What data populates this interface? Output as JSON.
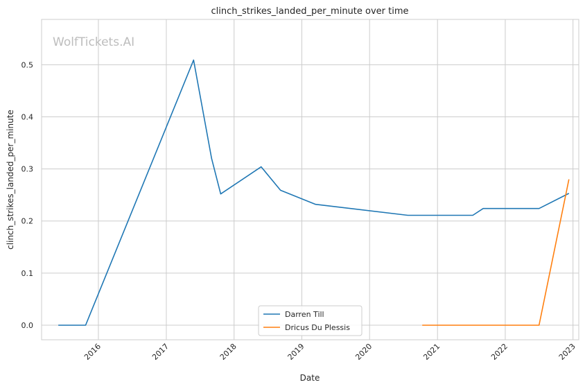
{
  "watermark": "WolfTickets.AI",
  "chart_data": {
    "type": "line",
    "title": "clinch_strikes_landed_per_minute over time",
    "xlabel": "Date",
    "ylabel": "clinch_strikes_landed_per_minute",
    "xlim": [
      "2015-03-01",
      "2023-02-01"
    ],
    "ylim": [
      -0.028,
      0.587
    ],
    "x_ticks": [
      "2016",
      "2017",
      "2018",
      "2019",
      "2020",
      "2021",
      "2022",
      "2023"
    ],
    "y_ticks": [
      "0.0",
      "0.1",
      "0.2",
      "0.3",
      "0.4",
      "0.5"
    ],
    "grid": true,
    "legend_position": "bottom-center",
    "series": [
      {
        "name": "Darren Till",
        "color": "#1f77b4",
        "points": [
          [
            "2015-05-30",
            0.0
          ],
          [
            "2015-10-24",
            0.0
          ],
          [
            "2017-05-28",
            0.509
          ],
          [
            "2017-09-02",
            0.32
          ],
          [
            "2017-10-21",
            0.252
          ],
          [
            "2018-05-27",
            0.304
          ],
          [
            "2018-09-08",
            0.259
          ],
          [
            "2019-03-16",
            0.232
          ],
          [
            "2020-07-25",
            0.211
          ],
          [
            "2021-07-10",
            0.211
          ],
          [
            "2021-09-04",
            0.224
          ],
          [
            "2022-07-02",
            0.224
          ],
          [
            "2022-12-10",
            0.253
          ]
        ]
      },
      {
        "name": "Dricus Du Plessis",
        "color": "#ff7f0e",
        "points": [
          [
            "2020-10-11",
            0.0
          ],
          [
            "2022-07-02",
            0.0
          ],
          [
            "2022-12-10",
            0.28
          ]
        ]
      }
    ]
  }
}
